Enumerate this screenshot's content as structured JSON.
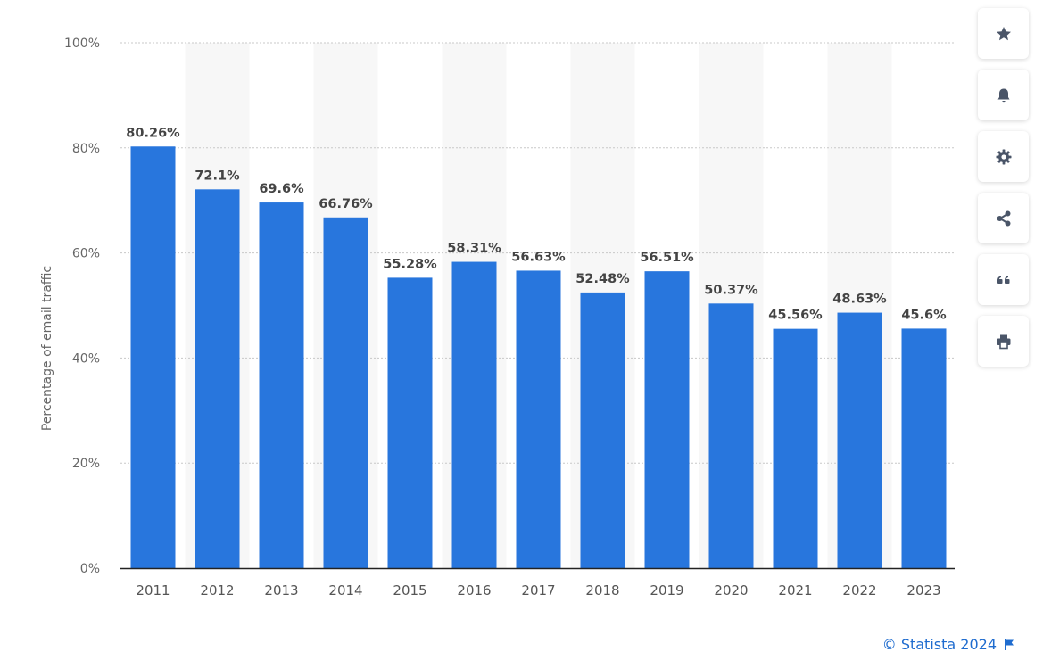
{
  "chart_data": {
    "type": "bar",
    "ylabel": "Percentage of email traffic",
    "xlabel": "",
    "ylim": [
      0,
      100
    ],
    "yticks": [
      0,
      20,
      40,
      60,
      80,
      100
    ],
    "ytick_labels": [
      "0%",
      "20%",
      "40%",
      "60%",
      "80%",
      "100%"
    ],
    "categories": [
      "2011",
      "2012",
      "2013",
      "2014",
      "2015",
      "2016",
      "2017",
      "2018",
      "2019",
      "2020",
      "2021",
      "2022",
      "2023"
    ],
    "values": [
      80.26,
      72.1,
      69.6,
      66.76,
      55.28,
      58.31,
      56.63,
      52.48,
      56.51,
      50.37,
      45.56,
      48.63,
      45.6
    ],
    "value_labels": [
      "80.26%",
      "72.1%",
      "69.6%",
      "66.76%",
      "55.28%",
      "58.31%",
      "56.63%",
      "52.48%",
      "56.51%",
      "50.37%",
      "45.56%",
      "48.63%",
      "45.6%"
    ],
    "grid": true,
    "bar_color": "#2876dd",
    "band_color": "#f7f7f7"
  },
  "toolbar": {
    "items": [
      {
        "name": "favorite-button",
        "icon": "star-icon"
      },
      {
        "name": "notification-button",
        "icon": "bell-icon"
      },
      {
        "name": "settings-button",
        "icon": "gear-icon"
      },
      {
        "name": "share-button",
        "icon": "share-icon"
      },
      {
        "name": "cite-button",
        "icon": "quote-icon"
      },
      {
        "name": "print-button",
        "icon": "printer-icon"
      }
    ]
  },
  "credit": {
    "text": "© Statista 2024",
    "color": "#1f6ccf"
  }
}
